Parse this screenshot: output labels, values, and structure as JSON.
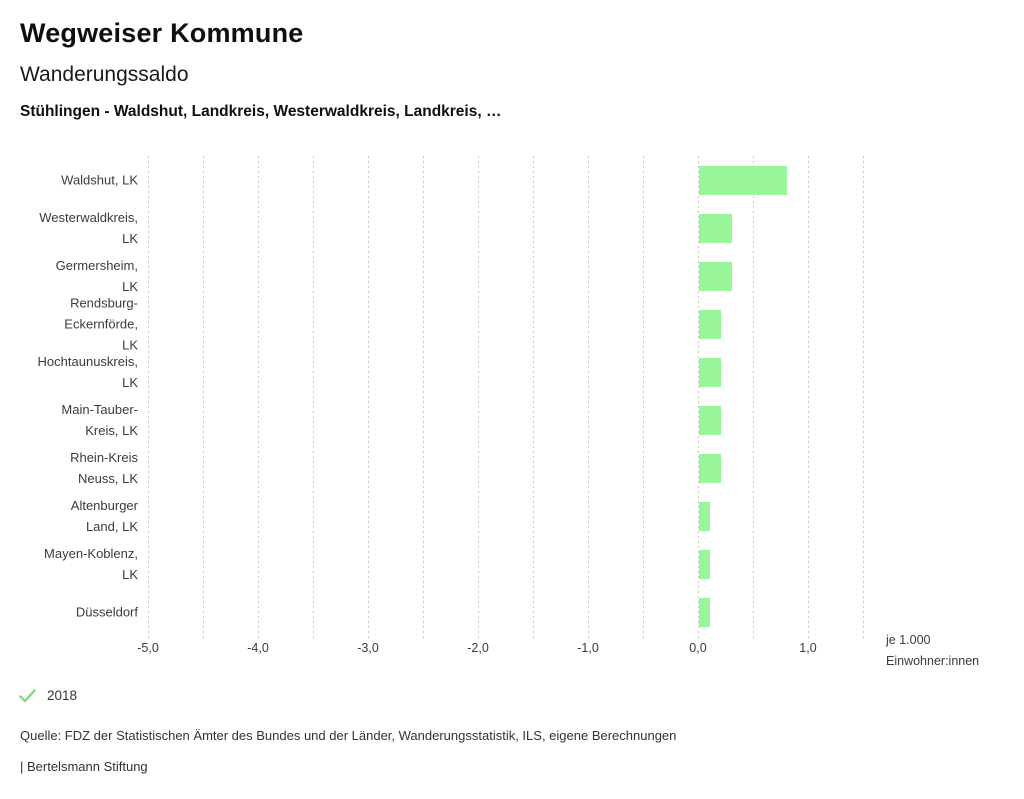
{
  "header": {
    "title": "Wegweiser Kommune",
    "subtitle": "Wanderungssaldo",
    "selection": "Stühlingen - Waldshut, Landkreis, Westerwaldkreis, Landkreis, …"
  },
  "chart_data": {
    "type": "bar",
    "orientation": "horizontal",
    "title": "Wanderungssaldo",
    "xlabel": "je 1.000 Einwohner:innen",
    "unit_label_lines": [
      "je 1.000",
      "Einwohner:innen"
    ],
    "categories": [
      [
        "Waldshut, LK"
      ],
      [
        "Westerwaldkreis,",
        "LK"
      ],
      [
        "Germersheim,",
        "LK"
      ],
      [
        "Rendsburg-",
        "Eckernförde,",
        "LK"
      ],
      [
        "Hochtaunuskreis,",
        "LK"
      ],
      [
        "Main-Tauber-",
        "Kreis, LK"
      ],
      [
        "Rhein-Kreis",
        "Neuss, LK"
      ],
      [
        "Altenburger",
        "Land, LK"
      ],
      [
        "Mayen-Koblenz,",
        "LK"
      ],
      [
        "Düsseldorf"
      ]
    ],
    "values": [
      0.8,
      0.3,
      0.3,
      0.2,
      0.2,
      0.2,
      0.2,
      0.1,
      0.1,
      0.1
    ],
    "x_ticks": [
      "-5,0",
      "-4,0",
      "-3,0",
      "-2,0",
      "-1,0",
      "0,0",
      "1,0"
    ],
    "xlim": [
      -5.0,
      1.5
    ],
    "grid_step": 0.5,
    "grid": true,
    "bar_color": "#98f598",
    "legend_position": "bottom"
  },
  "legend": {
    "year": "2018",
    "check_color": "#7edc7e"
  },
  "footer": {
    "source": "Quelle: FDZ der Statistischen Ämter des Bundes und der Länder, Wanderungsstatistik, ILS, eigene Berechnungen",
    "attribution": "| Bertelsmann Stiftung"
  }
}
